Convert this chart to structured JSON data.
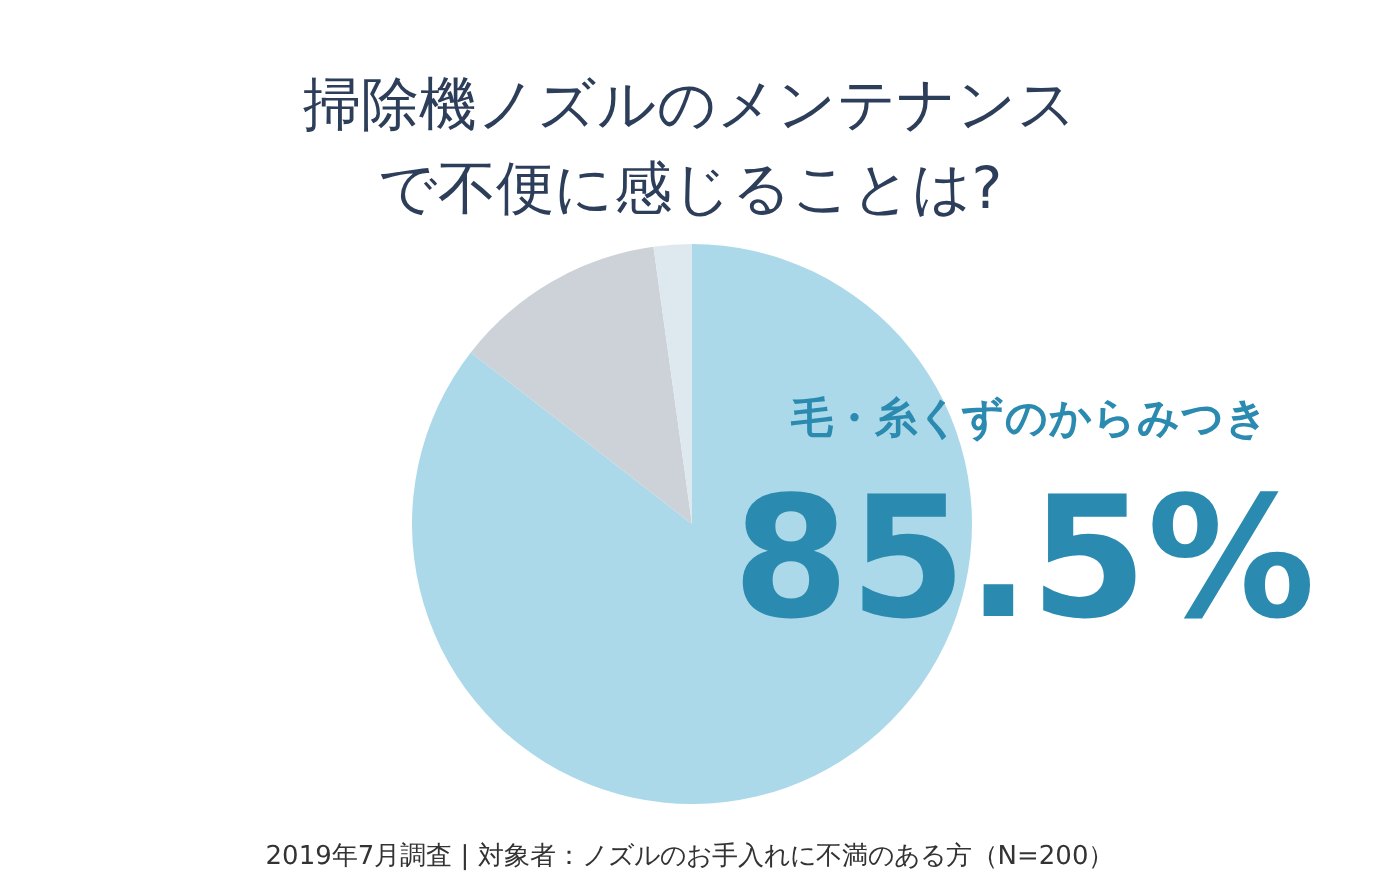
{
  "chart_data": {
    "type": "pie",
    "title": "掃除機ノズルのメンテナンスで不便に感じることは?",
    "categories": [
      "毛・糸くずのからみつき",
      null,
      null
    ],
    "values": [
      85.5,
      12.3,
      2.2
    ],
    "colors": [
      "#acd9e9",
      "#cdd2d8",
      "#dde9ef"
    ],
    "value_labels": [
      "85.5%",
      null,
      null
    ],
    "legend": false,
    "annotations": [
      "2019年7月調査 | 対象者：ノズルのお手入れに不満のある方（N=200）"
    ]
  }
}
